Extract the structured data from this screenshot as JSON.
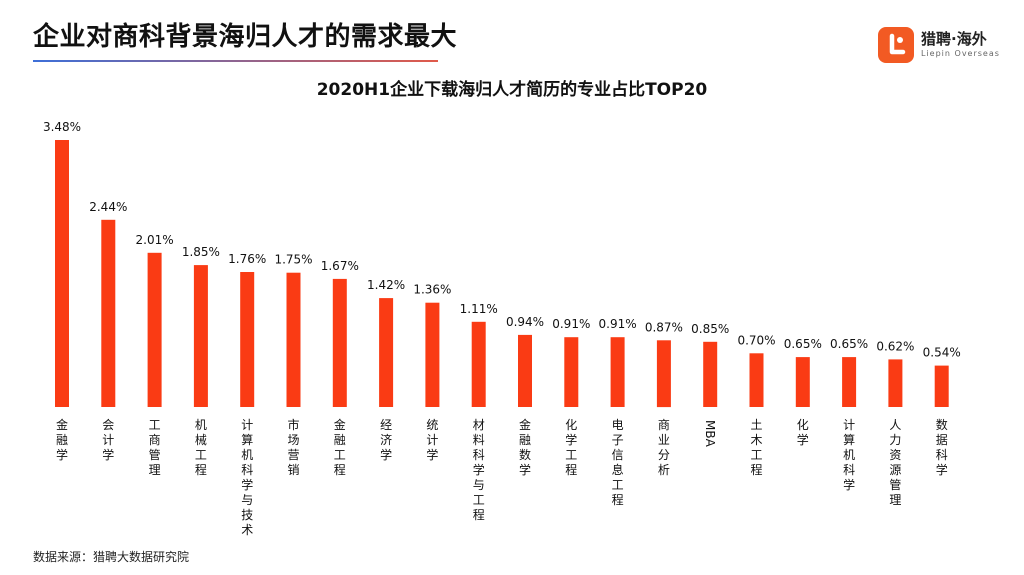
{
  "headline": "企业对商科背景海归人才的需求最大",
  "brand": {
    "name": "猎聘·海外",
    "subtitle": "Liepin Overseas"
  },
  "source": "数据来源：猎聘大数据研究院",
  "colors": {
    "bar": "#fa3b14",
    "logo": "#f25a23",
    "underline_start": "#3d6fd8",
    "underline_end": "#e05a4a"
  },
  "chart_data": {
    "type": "bar",
    "title": "2020H1企业下载海归人才简历的专业占比TOP20",
    "categories": [
      "金融学",
      "会计学",
      "工商管理",
      "机械工程",
      "计算机科学与技术",
      "市场营销",
      "金融工程",
      "经济学",
      "统计学",
      "材料科学与工程",
      "金融数学",
      "化学工程",
      "电子信息工程",
      "商业分析",
      "MBA",
      "土木工程",
      "化学",
      "计算机科学",
      "人力资源管理",
      "数据科学"
    ],
    "values": [
      3.48,
      2.44,
      2.01,
      1.85,
      1.76,
      1.75,
      1.67,
      1.42,
      1.36,
      1.11,
      0.94,
      0.91,
      0.91,
      0.87,
      0.85,
      0.7,
      0.65,
      0.65,
      0.62,
      0.54
    ],
    "value_labels": [
      "3.48%",
      "2.44%",
      "2.01%",
      "1.85%",
      "1.76%",
      "1.75%",
      "1.67%",
      "1.42%",
      "1.36%",
      "1.11%",
      "0.94%",
      "0.91%",
      "0.91%",
      "0.87%",
      "0.85%",
      "0.70%",
      "0.65%",
      "0.65%",
      "0.62%",
      "0.54%"
    ],
    "unit": "%",
    "xlabel": "",
    "ylabel": "",
    "ylim": [
      0,
      3.48
    ],
    "grid": false,
    "legend": "none"
  }
}
